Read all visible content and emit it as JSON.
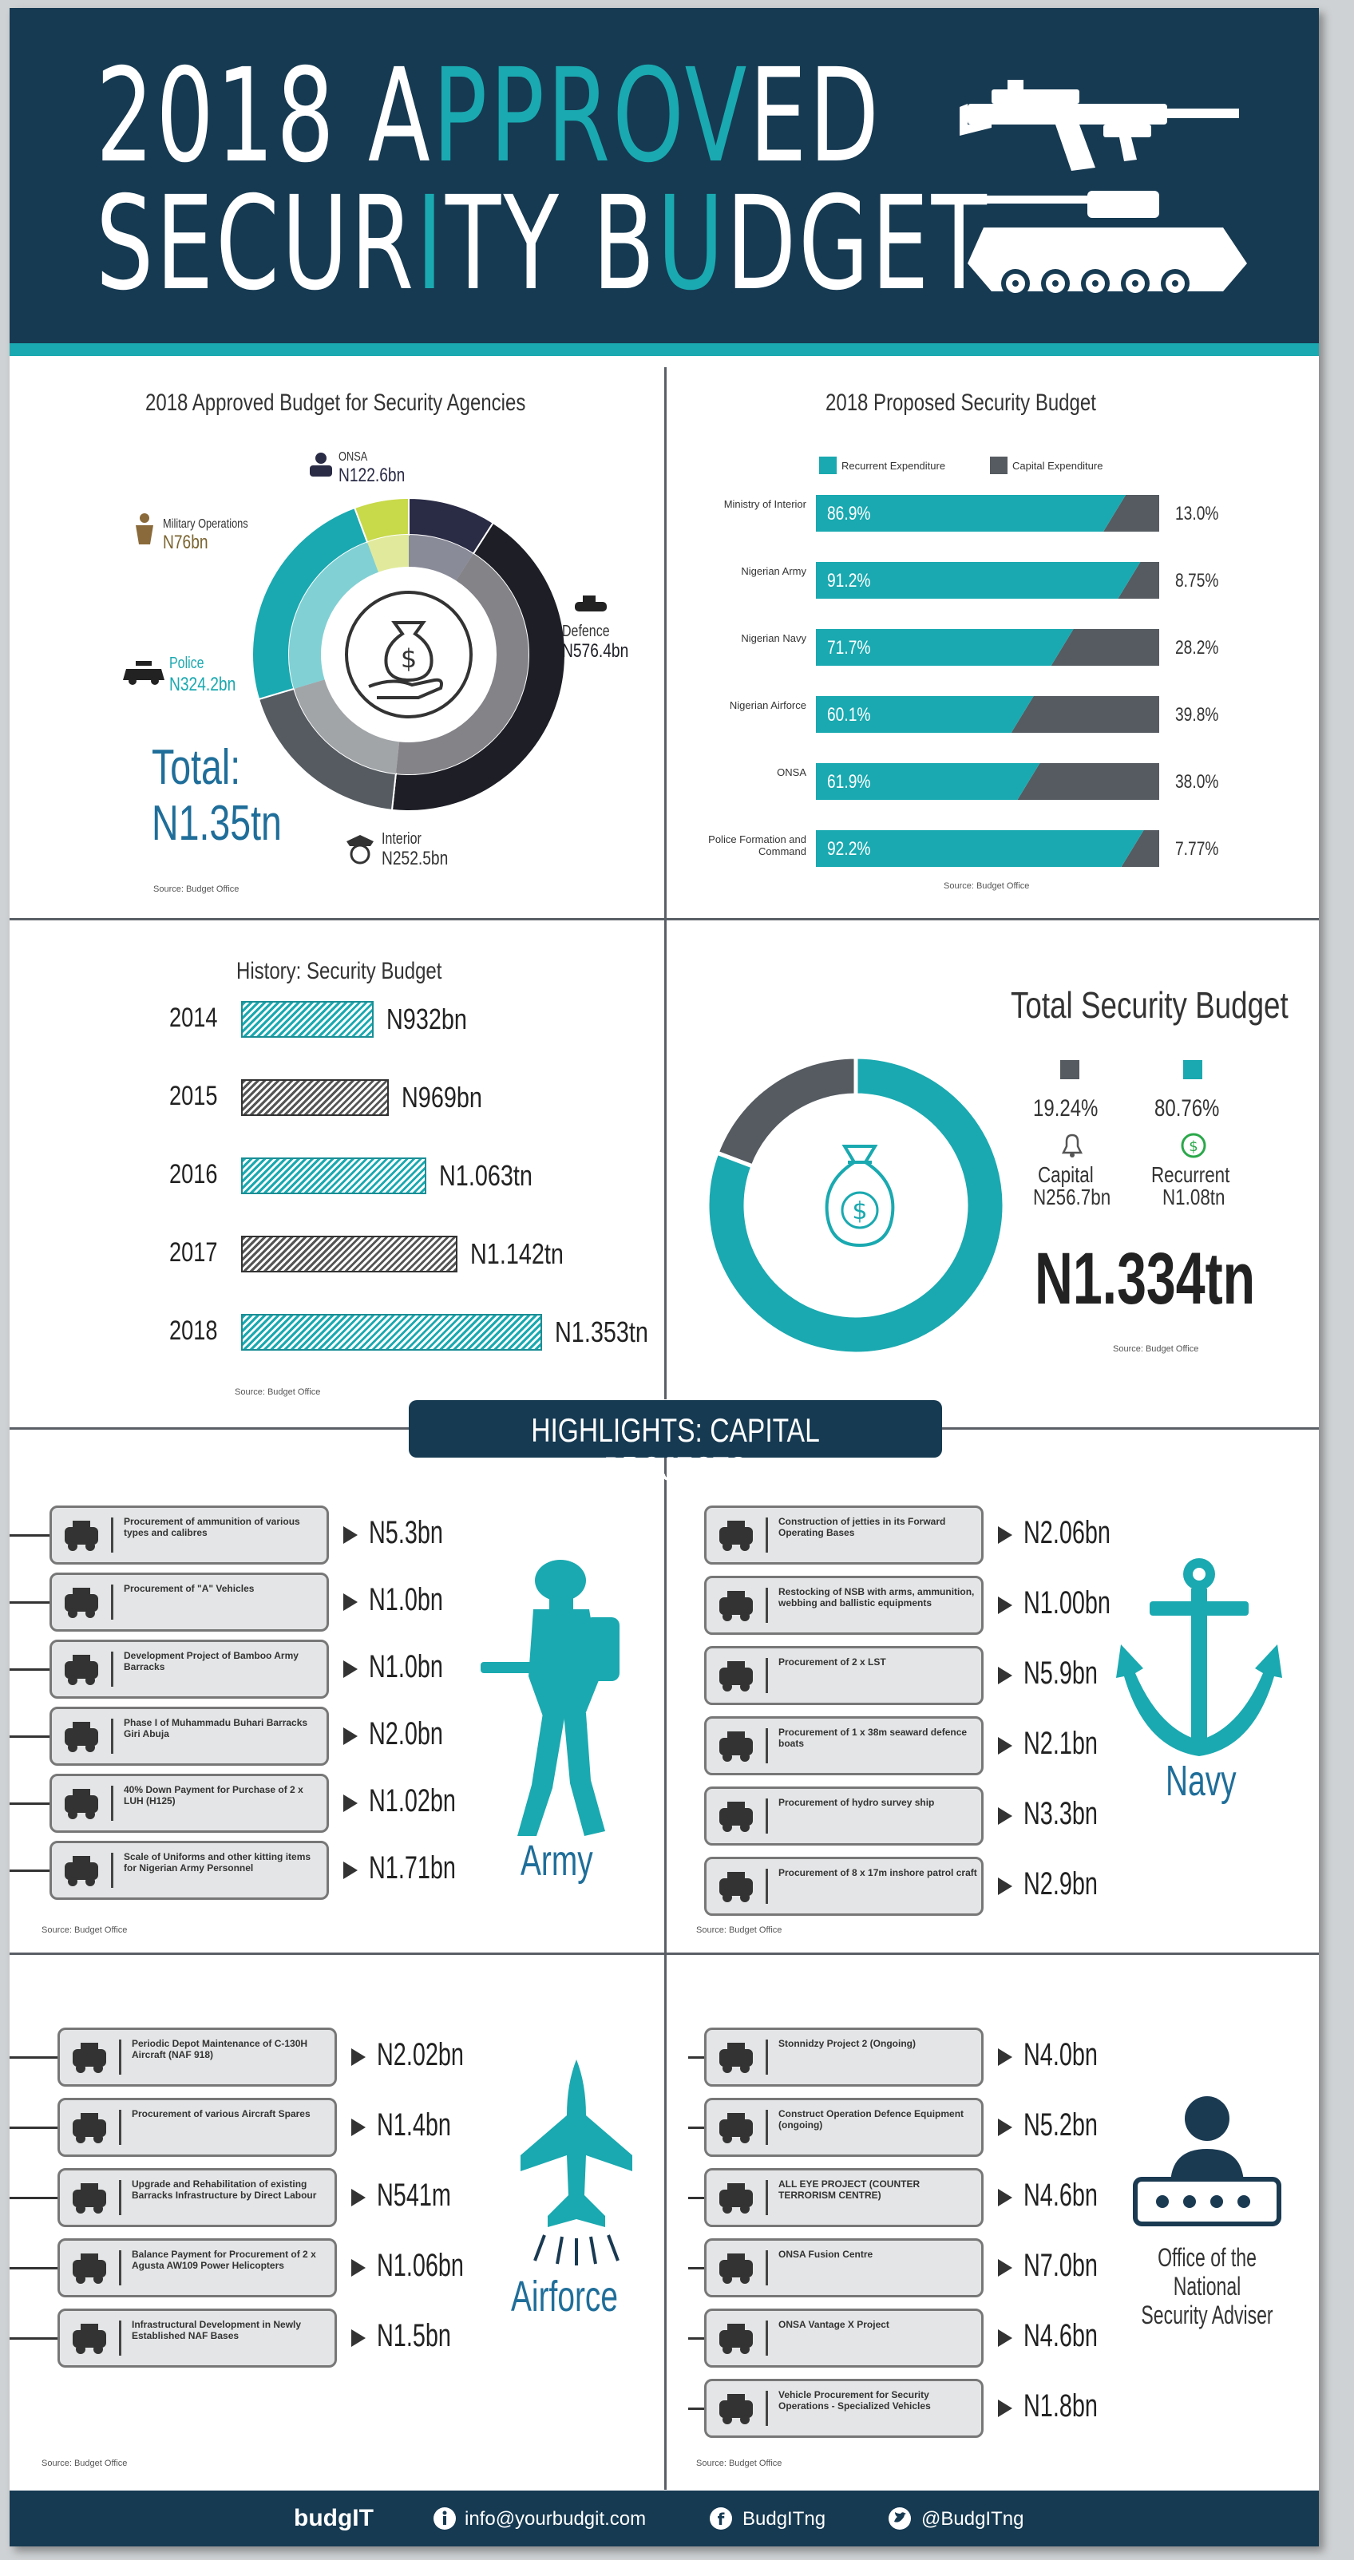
{
  "header": {
    "title_line1_a": "2018 A",
    "title_line1_b": "PPROV",
    "title_line1_c": "ED",
    "title_line2_a": "SECUR",
    "title_line2_b": "I",
    "title_line2_c": "TY B",
    "title_line2_d": "U",
    "title_line2_e": "DGET"
  },
  "agencies": {
    "title": "2018 Approved Budget for Security Agencies",
    "total_label": "Total:",
    "total_value": "N1.35tn",
    "source": "Source: Budget Office",
    "items": [
      {
        "name": "ONSA",
        "value_text": "N122.6bn",
        "value": 122.6,
        "color": "#2a2b45"
      },
      {
        "name": "Defence",
        "value_text": "N576.4bn",
        "value": 576.4,
        "color": "#1d1e26"
      },
      {
        "name": "Interior",
        "value_text": "N252.5bn",
        "value": 252.5,
        "color": "#555b61"
      },
      {
        "name": "Police",
        "value_text": "N324.2bn",
        "value": 324.2,
        "color": "#1aa9b0"
      },
      {
        "name": "Military Operations",
        "value_text": "N76bn",
        "value": 76,
        "color": "#c8d94a"
      }
    ]
  },
  "proposed": {
    "title": "2018 Proposed Security Budget",
    "legend_recurrent": "Recurrent Expenditure",
    "legend_capital": "Capital Expenditure",
    "source": "Source: Budget Office",
    "rows": [
      {
        "label": "Ministry of Interior",
        "recurrent": 86.9,
        "recurrent_text": "86.9%",
        "capital": 13.0,
        "capital_text": "13.0%"
      },
      {
        "label": "Nigerian Army",
        "recurrent": 91.2,
        "recurrent_text": "91.2%",
        "capital": 8.75,
        "capital_text": "8.75%"
      },
      {
        "label": "Nigerian Navy",
        "recurrent": 71.7,
        "recurrent_text": "71.7%",
        "capital": 28.2,
        "capital_text": "28.2%"
      },
      {
        "label": "Nigerian Airforce",
        "recurrent": 60.1,
        "recurrent_text": "60.1%",
        "capital": 39.8,
        "capital_text": "39.8%"
      },
      {
        "label": "ONSA",
        "recurrent": 61.9,
        "recurrent_text": "61.9%",
        "capital": 38.0,
        "capital_text": "38.0%"
      },
      {
        "label": "Police Formation and Command",
        "recurrent": 92.2,
        "recurrent_text": "92.2%",
        "capital": 7.77,
        "capital_text": "7.77%"
      }
    ]
  },
  "history": {
    "title": "History: Security Budget",
    "source": "Source: Budget Office",
    "rows": [
      {
        "year": "2014",
        "value": 932,
        "label": "N932bn",
        "style": "teal"
      },
      {
        "year": "2015",
        "value": 969,
        "label": "N969bn",
        "style": "gray"
      },
      {
        "year": "2016",
        "value": 1063,
        "label": "N1.063tn",
        "style": "teal"
      },
      {
        "year": "2017",
        "value": 1142,
        "label": "N1.142tn",
        "style": "gray"
      },
      {
        "year": "2018",
        "value": 1353,
        "label": "N1.353tn",
        "style": "teal"
      }
    ]
  },
  "total_security": {
    "title": "Total Security Budget",
    "capital_pct": "19.24%",
    "recurrent_pct": "80.76%",
    "capital_label": "Capital",
    "capital_value": "N256.7bn",
    "recurrent_label": "Recurrent",
    "recurrent_value": "N1.08tn",
    "total": "N1.334tn",
    "source": "Source: Budget Office"
  },
  "chart_data": [
    {
      "type": "pie",
      "title": "2018 Approved Budget for Security Agencies",
      "categories": [
        "ONSA",
        "Defence",
        "Interior",
        "Police",
        "Military Operations"
      ],
      "values": [
        122.6,
        576.4,
        252.5,
        324.2,
        76
      ]
    },
    {
      "type": "bar",
      "title": "2018 Proposed Security Budget",
      "categories": [
        "Ministry of Interior",
        "Nigerian Army",
        "Nigerian Navy",
        "Nigerian Airforce",
        "ONSA",
        "Police Formation and Command"
      ],
      "series": [
        {
          "name": "Recurrent Expenditure",
          "values": [
            86.9,
            91.2,
            71.7,
            60.1,
            61.9,
            92.2
          ]
        },
        {
          "name": "Capital Expenditure",
          "values": [
            13.0,
            8.75,
            28.2,
            39.8,
            38.0,
            7.77
          ]
        }
      ]
    },
    {
      "type": "bar",
      "title": "History: Security Budget",
      "categories": [
        "2014",
        "2015",
        "2016",
        "2017",
        "2018"
      ],
      "values": [
        932,
        969,
        1063,
        1142,
        1353
      ]
    },
    {
      "type": "pie",
      "title": "Total Security Budget",
      "categories": [
        "Capital",
        "Recurrent"
      ],
      "values": [
        19.24,
        80.76
      ]
    }
  ],
  "highlights": {
    "title": "HIGHLIGHTS: CAPITAL PROJECTS",
    "army": {
      "label": "Army",
      "source": "Source: Budget Office",
      "items": [
        {
          "text": "Procurement of ammunition of various types and calibres",
          "amount": "N5.3bn"
        },
        {
          "text": "Procurement of \"A\" Vehicles",
          "amount": "N1.0bn"
        },
        {
          "text": "Development Project of Bamboo Army Barracks",
          "amount": "N1.0bn"
        },
        {
          "text": "Phase I of Muhammadu Buhari Barracks Giri Abuja",
          "amount": "N2.0bn"
        },
        {
          "text": "40% Down Payment for Purchase of 2 x LUH (H125)",
          "amount": "N1.02bn"
        },
        {
          "text": "Scale of Uniforms and other kitting items for Nigerian Army Personnel",
          "amount": "N1.71bn"
        }
      ]
    },
    "navy": {
      "label": "Navy",
      "source": "Source: Budget Office",
      "items": [
        {
          "text": "Construction of jetties in its Forward Operating Bases",
          "amount": "N2.06bn"
        },
        {
          "text": "Restocking of NSB with arms, ammunition, webbing and ballistic equipments",
          "amount": "N1.00bn"
        },
        {
          "text": "Procurement of 2 x LST",
          "amount": "N5.9bn"
        },
        {
          "text": "Procurement of 1 x 38m seaward defence boats",
          "amount": "N2.1bn"
        },
        {
          "text": "Procurement of hydro survey ship",
          "amount": "N3.3bn"
        },
        {
          "text": "Procurement of 8 x 17m inshore patrol craft",
          "amount": "N2.9bn"
        }
      ]
    },
    "airforce": {
      "label": "Airforce",
      "source": "Source: Budget Office",
      "items": [
        {
          "text": "Periodic Depot Maintenance of C-130H Aircraft (NAF 918)",
          "amount": "N2.02bn"
        },
        {
          "text": "Procurement of various Aircraft Spares",
          "amount": "N1.4bn"
        },
        {
          "text": "Upgrade and Rehabilitation of existing Barracks Infrastructure by Direct Labour",
          "amount": "N541m"
        },
        {
          "text": "Balance Payment for Procurement of 2 x Agusta AW109 Power Helicopters",
          "amount": "N1.06bn"
        },
        {
          "text": "Infrastructural Development in Newly Established NAF Bases",
          "amount": "N1.5bn"
        }
      ]
    },
    "onsa": {
      "label": "Office of the National Security Adviser",
      "source": "Source: Budget Office",
      "items": [
        {
          "text": "Stonnidzy Project 2 (Ongoing)",
          "amount": "N4.0bn"
        },
        {
          "text": "Construct Operation Defence Equipment (ongoing)",
          "amount": "N5.2bn"
        },
        {
          "text": "ALL EYE PROJECT (COUNTER TERRORISM CENTRE)",
          "amount": "N4.6bn"
        },
        {
          "text": "ONSA Fusion Centre",
          "amount": "N7.0bn"
        },
        {
          "text": "ONSA Vantage X Project",
          "amount": "N4.6bn"
        },
        {
          "text": "Vehicle Procurement for Security Operations - Specialized Vehicles",
          "amount": "N1.8bn"
        }
      ]
    }
  },
  "footer": {
    "brand": "budgIT",
    "email": "info@yourbudgit.com",
    "facebook": "BudgITng",
    "twitter": "@BudgITng"
  },
  "colors": {
    "navy": "#163a52",
    "teal": "#1aa9b0",
    "dark": "#555b61"
  }
}
